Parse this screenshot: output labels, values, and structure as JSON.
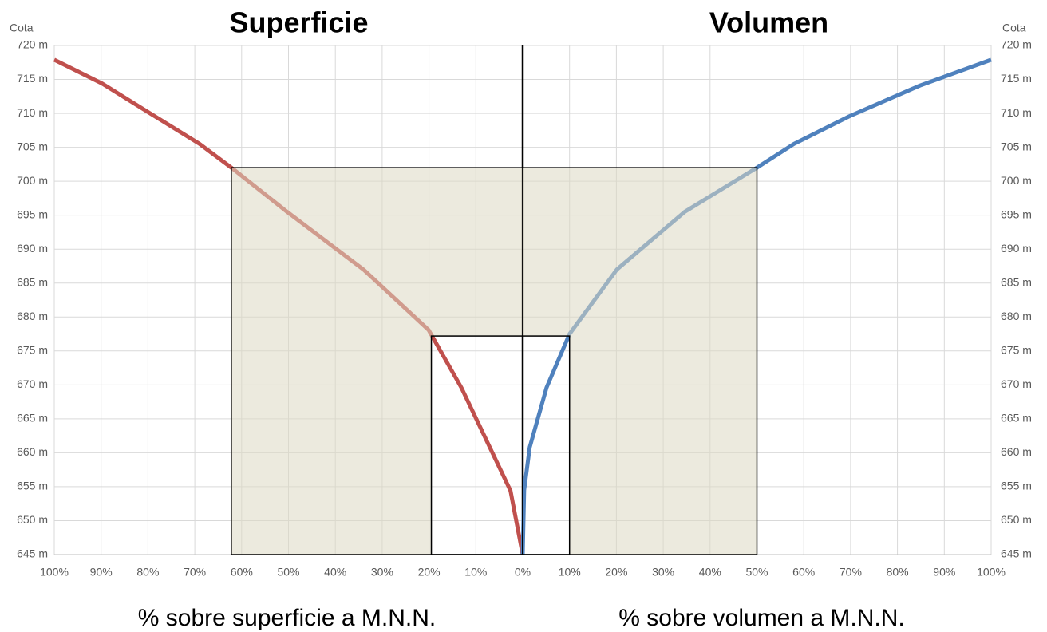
{
  "chart_data": [
    {
      "type": "line",
      "title": "Superficie",
      "xlabel": "% sobre superficie a M.N.N.",
      "ylabel": "Cota",
      "xlim": [
        100,
        0
      ],
      "xticks": [
        {
          "value": 100,
          "label": "100%"
        },
        {
          "value": 90,
          "label": "90%"
        },
        {
          "value": 80,
          "label": "80%"
        },
        {
          "value": 70,
          "label": "70%"
        },
        {
          "value": 60,
          "label": "60%"
        },
        {
          "value": 50,
          "label": "50%"
        },
        {
          "value": 40,
          "label": "40%"
        },
        {
          "value": 30,
          "label": "30%"
        },
        {
          "value": 20,
          "label": "20%"
        },
        {
          "value": 10,
          "label": "10%"
        }
      ],
      "ylim": [
        645,
        720
      ],
      "yticks": [
        {
          "value": 645,
          "label": "645 m"
        },
        {
          "value": 650,
          "label": "650 m"
        },
        {
          "value": 655,
          "label": "655 m"
        },
        {
          "value": 660,
          "label": "660 m"
        },
        {
          "value": 665,
          "label": "665 m"
        },
        {
          "value": 670,
          "label": "670 m"
        },
        {
          "value": 675,
          "label": "675 m"
        },
        {
          "value": 680,
          "label": "680 m"
        },
        {
          "value": 685,
          "label": "685 m"
        },
        {
          "value": 690,
          "label": "690 m"
        },
        {
          "value": 695,
          "label": "695 m"
        },
        {
          "value": 700,
          "label": "700 m"
        },
        {
          "value": 705,
          "label": "705 m"
        },
        {
          "value": 710,
          "label": "710 m"
        },
        {
          "value": 715,
          "label": "715 m"
        },
        {
          "value": 720,
          "label": "720 m"
        }
      ],
      "grid": true,
      "series": [
        {
          "color": "#c0504d",
          "x": [
            0,
            2.6,
            13.1,
            20.1,
            34,
            50.3,
            62.2,
            69,
            80,
            89.8,
            100
          ],
          "values": [
            645,
            654.4,
            669.6,
            678.1,
            687,
            695.5,
            702,
            705.5,
            710.2,
            714.4,
            717.9
          ]
        }
      ],
      "boxes": [
        {
          "x": [
            62.2,
            0
          ],
          "y": [
            645,
            702
          ]
        },
        {
          "x": [
            19.5,
            0
          ],
          "y": [
            645,
            677.2
          ]
        }
      ]
    },
    {
      "type": "line",
      "title": "Volumen",
      "xlabel": "% sobre volumen a M.N.N.",
      "ylabel": "Cota",
      "xlim": [
        0,
        100
      ],
      "xticks": [
        {
          "value": 0,
          "label": "0%"
        },
        {
          "value": 10,
          "label": "10%"
        },
        {
          "value": 20,
          "label": "20%"
        },
        {
          "value": 30,
          "label": "30%"
        },
        {
          "value": 40,
          "label": "40%"
        },
        {
          "value": 50,
          "label": "50%"
        },
        {
          "value": 60,
          "label": "60%"
        },
        {
          "value": 70,
          "label": "70%"
        },
        {
          "value": 80,
          "label": "80%"
        },
        {
          "value": 90,
          "label": "90%"
        },
        {
          "value": 100,
          "label": "100%"
        }
      ],
      "ylim": [
        645,
        720
      ],
      "yticks": [
        {
          "value": 645,
          "label": "645 m"
        },
        {
          "value": 650,
          "label": "650 m"
        },
        {
          "value": 655,
          "label": "655 m"
        },
        {
          "value": 660,
          "label": "660 m"
        },
        {
          "value": 665,
          "label": "665 m"
        },
        {
          "value": 670,
          "label": "670 m"
        },
        {
          "value": 675,
          "label": "675 m"
        },
        {
          "value": 680,
          "label": "680 m"
        },
        {
          "value": 685,
          "label": "685 m"
        },
        {
          "value": 690,
          "label": "690 m"
        },
        {
          "value": 695,
          "label": "695 m"
        },
        {
          "value": 700,
          "label": "700 m"
        },
        {
          "value": 705,
          "label": "705 m"
        },
        {
          "value": 710,
          "label": "710 m"
        },
        {
          "value": 715,
          "label": "715 m"
        },
        {
          "value": 720,
          "label": "720 m"
        }
      ],
      "grid": true,
      "series": [
        {
          "color": "#4f81bd",
          "x": [
            0,
            0.3,
            1.5,
            5.1,
            10,
            20.1,
            34.6,
            50,
            57.9,
            69.8,
            84.8,
            100
          ],
          "values": [
            645,
            654.5,
            660.8,
            669.6,
            677.5,
            687,
            695.5,
            702,
            705.5,
            709.6,
            714.1,
            717.9
          ]
        }
      ],
      "boxes": [
        {
          "x": [
            0,
            50
          ],
          "y": [
            645,
            702
          ]
        },
        {
          "x": [
            0,
            10
          ],
          "y": [
            645,
            677.2
          ]
        }
      ]
    }
  ]
}
